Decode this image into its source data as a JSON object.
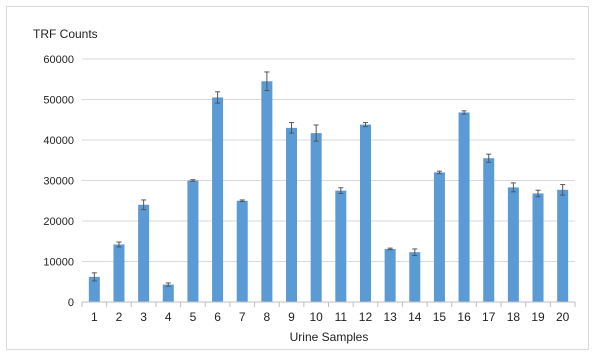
{
  "chart_data": {
    "type": "bar",
    "ylabel": "TRF Counts",
    "xlabel": "Urine Samples",
    "ylim": [
      0,
      60000
    ],
    "yticks": [
      0,
      10000,
      20000,
      30000,
      40000,
      50000,
      60000
    ],
    "grid": true,
    "categories": [
      "1",
      "2",
      "3",
      "4",
      "5",
      "6",
      "7",
      "8",
      "9",
      "10",
      "11",
      "12",
      "13",
      "14",
      "15",
      "16",
      "17",
      "18",
      "19",
      "20"
    ],
    "values": [
      6200,
      14200,
      24000,
      4300,
      30000,
      50500,
      25000,
      54500,
      43000,
      41700,
      27500,
      43800,
      13100,
      12300,
      32000,
      46800,
      35500,
      28300,
      26800,
      27700
    ],
    "errors": [
      1000,
      600,
      1200,
      400,
      200,
      1400,
      200,
      2300,
      1300,
      2000,
      700,
      500,
      200,
      800,
      300,
      400,
      1000,
      1100,
      800,
      1300
    ],
    "bar_color": "#5b9bd5",
    "error_color": "#555555"
  }
}
